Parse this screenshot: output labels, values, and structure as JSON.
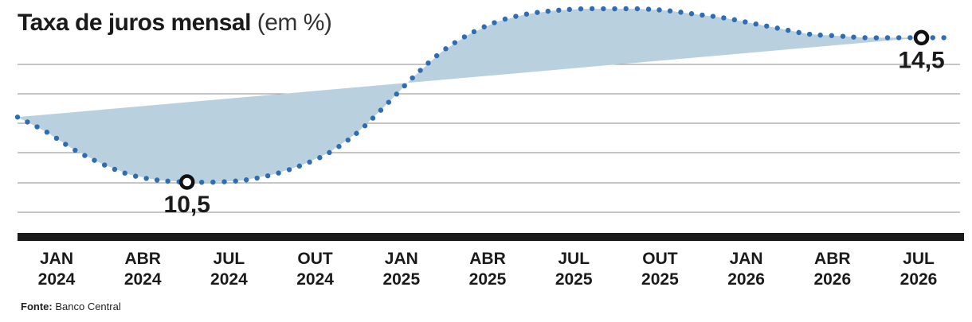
{
  "chart_data": {
    "type": "line",
    "title": "Taxa de juros mensal",
    "unit": "(em %)",
    "x_ticks": [
      {
        "month": "JAN",
        "year": "2024"
      },
      {
        "month": "ABR",
        "year": "2024"
      },
      {
        "month": "JUL",
        "year": "2024"
      },
      {
        "month": "OUT",
        "year": "2024"
      },
      {
        "month": "JAN",
        "year": "2025"
      },
      {
        "month": "ABR",
        "year": "2025"
      },
      {
        "month": "JUL",
        "year": "2025"
      },
      {
        "month": "OUT",
        "year": "2025"
      },
      {
        "month": "JAN",
        "year": "2026"
      },
      {
        "month": "ABR",
        "year": "2026"
      },
      {
        "month": "JUL",
        "year": "2026"
      }
    ],
    "x_range": [
      "2023-11",
      "2026-08"
    ],
    "ylim": [
      9.5,
      15.5
    ],
    "grid": true,
    "series": [
      {
        "color": "#2e6db4",
        "style": "dotted",
        "points": [
          {
            "x": "2023-11",
            "y": 12.3
          },
          {
            "x": "2023-12",
            "y": 11.9
          },
          {
            "x": "2024-01",
            "y": 11.4
          },
          {
            "x": "2024-02",
            "y": 11.0
          },
          {
            "x": "2024-03",
            "y": 10.7
          },
          {
            "x": "2024-04",
            "y": 10.55
          },
          {
            "x": "2024-05",
            "y": 10.5
          },
          {
            "x": "2024-06",
            "y": 10.5
          },
          {
            "x": "2024-07",
            "y": 10.55
          },
          {
            "x": "2024-08",
            "y": 10.7
          },
          {
            "x": "2024-09",
            "y": 10.95
          },
          {
            "x": "2024-10",
            "y": 11.3
          },
          {
            "x": "2024-11",
            "y": 11.85
          },
          {
            "x": "2024-12",
            "y": 12.6
          },
          {
            "x": "2025-01",
            "y": 13.4
          },
          {
            "x": "2025-02",
            "y": 14.1
          },
          {
            "x": "2025-03",
            "y": 14.6
          },
          {
            "x": "2025-04",
            "y": 14.95
          },
          {
            "x": "2025-05",
            "y": 15.15
          },
          {
            "x": "2025-06",
            "y": 15.25
          },
          {
            "x": "2025-07",
            "y": 15.3
          },
          {
            "x": "2025-08",
            "y": 15.3
          },
          {
            "x": "2025-09",
            "y": 15.3
          },
          {
            "x": "2025-10",
            "y": 15.25
          },
          {
            "x": "2025-11",
            "y": 15.15
          },
          {
            "x": "2025-12",
            "y": 15.05
          },
          {
            "x": "2026-01",
            "y": 14.9
          },
          {
            "x": "2026-02",
            "y": 14.75
          },
          {
            "x": "2026-03",
            "y": 14.6
          },
          {
            "x": "2026-04",
            "y": 14.55
          },
          {
            "x": "2026-05",
            "y": 14.5
          },
          {
            "x": "2026-06",
            "y": 14.5
          },
          {
            "x": "2026-07",
            "y": 14.5
          },
          {
            "x": "2026-08",
            "y": 14.5
          }
        ]
      }
    ],
    "shaded_area": {
      "color": "#b9d0de",
      "description_label": "",
      "baseline_from": {
        "x": "2023-11",
        "y": 12.3
      },
      "baseline_to": {
        "x": "2026-07",
        "y": 14.5
      }
    },
    "annotations": [
      {
        "x": "2024-05",
        "y": 10.5,
        "label": "10,5",
        "position": "below"
      },
      {
        "x": "2026-07",
        "y": 14.5,
        "label": "14,5",
        "position": "below"
      }
    ]
  },
  "footer": {
    "source_label": "Fonte:",
    "source_value": "Banco Central"
  }
}
